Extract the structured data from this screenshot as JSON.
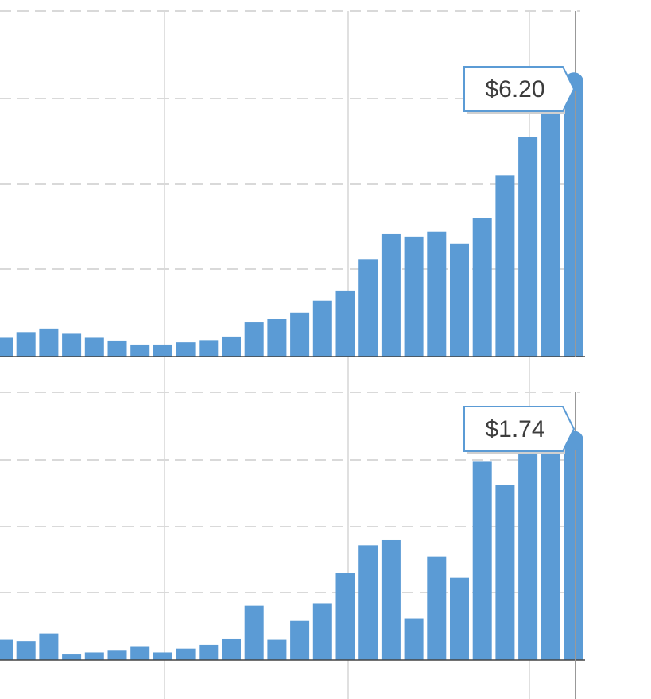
{
  "colors": {
    "bar": "#5b9bd5",
    "grid": "#d9d9d9",
    "vline": "#e0e0e0",
    "cursor": "#999999",
    "tooltip_border": "#5b9bd5",
    "tooltip_bg": "#ffffff"
  },
  "chart_data": [
    {
      "type": "bar",
      "ylim": [
        0,
        7.8
      ],
      "tooltip": {
        "label": "$6.20",
        "value": 6.2
      },
      "values": [
        0.44,
        0.55,
        0.63,
        0.53,
        0.44,
        0.36,
        0.27,
        0.27,
        0.32,
        0.37,
        0.45,
        0.77,
        0.86,
        0.99,
        1.26,
        1.49,
        2.2,
        2.78,
        2.71,
        2.82,
        2.55,
        3.12,
        4.1,
        4.96,
        5.84,
        6.2
      ]
    },
    {
      "type": "bar",
      "ylim": [
        0,
        2.12
      ],
      "tooltip": {
        "label": "$1.74",
        "value": 1.74
      },
      "values": [
        0.16,
        0.15,
        0.21,
        0.05,
        0.06,
        0.08,
        0.11,
        0.06,
        0.09,
        0.12,
        0.17,
        0.43,
        0.16,
        0.31,
        0.45,
        0.69,
        0.91,
        0.95,
        0.33,
        0.82,
        0.65,
        1.57,
        1.39,
        1.65,
        1.71,
        1.74
      ]
    }
  ]
}
